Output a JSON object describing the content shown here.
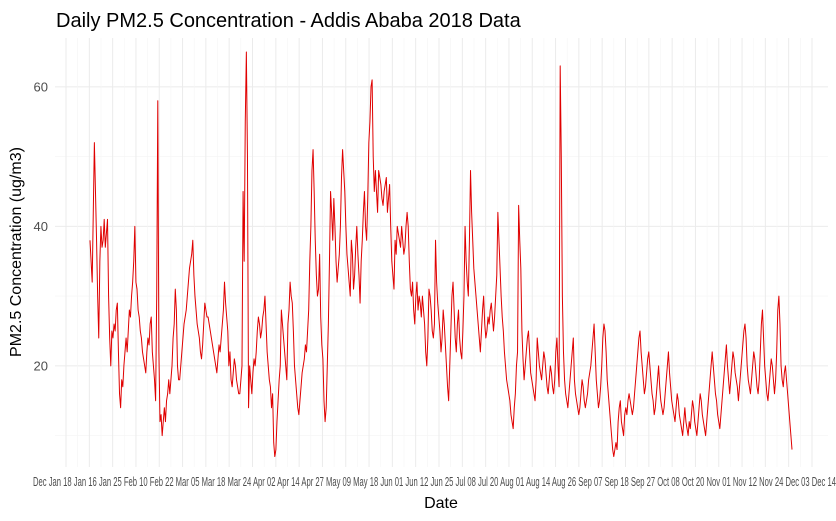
{
  "chart_data": {
    "type": "line",
    "title": "Daily PM2.5 Concentration - Addis Ababa 2018 Data",
    "xlabel": "Date",
    "ylabel": "PM2.5 Concentration (ug/m3)",
    "ylim": [
      5.5,
      67
    ],
    "yticks": [
      20,
      40,
      60
    ],
    "xlim": [
      0,
      380
    ],
    "x_tick_label_text": "Dec Jan 18 Jan 16 Jan 25 Feb 10 Feb 22 Mar 05 Mar 18 Mar 24 Apr 02 Apr 14 Apr 27 May 09 May 18 Jun 01 Jun 12 Jun 25 Jul 08 Jul 20 Aug 01 Aug 14 Aug 26 Sep 07 Sep 18 Sep 27 Oct 08 Oct 20 Nov 01 Nov 12 Nov 24 Dec 03 Dec 14",
    "grid": true,
    "legend": "none",
    "line_color": "#e00000",
    "series": [
      {
        "values": [
          38,
          35,
          32,
          42,
          52,
          45,
          38,
          30,
          24,
          35,
          40,
          37,
          38,
          41,
          37,
          39,
          41,
          30,
          24,
          20,
          25,
          24,
          26,
          25,
          28,
          29,
          22,
          16,
          14,
          18,
          17,
          20,
          22,
          24,
          22,
          25,
          28,
          27,
          30,
          32,
          35,
          40,
          32,
          31,
          28,
          27,
          25,
          24,
          22,
          21,
          20,
          19,
          22,
          24,
          23,
          26,
          27,
          22,
          20,
          18,
          15,
          30,
          58,
          22,
          12,
          13,
          10,
          12,
          14,
          12,
          15,
          16,
          18,
          16,
          18,
          20,
          24,
          26,
          31,
          28,
          20,
          18,
          18,
          20,
          22,
          24,
          26,
          27,
          28,
          30,
          32,
          34,
          35,
          36,
          38,
          33,
          30,
          28,
          26,
          25,
          24,
          22,
          21,
          23,
          26,
          29,
          28,
          27,
          27,
          26,
          25,
          24,
          23,
          22,
          21,
          20,
          19,
          21,
          23,
          22,
          24,
          26,
          28,
          32,
          29,
          27,
          25,
          20,
          22,
          18,
          17,
          19,
          21,
          20,
          18,
          17,
          16,
          16,
          18,
          20,
          45,
          35,
          55,
          65,
          50,
          14,
          20,
          18,
          16,
          19,
          21,
          20,
          22,
          25,
          27,
          26,
          24,
          25,
          27,
          28,
          30,
          26,
          22,
          20,
          18,
          17,
          14,
          16,
          9,
          7,
          8,
          12,
          15,
          18,
          20,
          28,
          26,
          24,
          22,
          20,
          18,
          26,
          28,
          32,
          30,
          29,
          25,
          20,
          18,
          16,
          14,
          13,
          15,
          17,
          19,
          20,
          21,
          23,
          22,
          25,
          28,
          35,
          40,
          48,
          51,
          45,
          38,
          33,
          30,
          31,
          36,
          27,
          23,
          21,
          15,
          12,
          14,
          20,
          26,
          35,
          45,
          42,
          38,
          44,
          40,
          35,
          32,
          34,
          36,
          40,
          47,
          51,
          48,
          45,
          40,
          36,
          34,
          32,
          30,
          38,
          36,
          31,
          33,
          37,
          40,
          36,
          33,
          29,
          35,
          38,
          42,
          45,
          40,
          38,
          44,
          52,
          55,
          60,
          61,
          50,
          45,
          48,
          45,
          42,
          48,
          47,
          46,
          44,
          43,
          45,
          46,
          47,
          42,
          44,
          46,
          40,
          35,
          33,
          31,
          38,
          36,
          40,
          39,
          38,
          37,
          40,
          38,
          36,
          37,
          40,
          42,
          40,
          35,
          31,
          30,
          32,
          28,
          26,
          30,
          32,
          28,
          30,
          29,
          27,
          30,
          28,
          26,
          22,
          20,
          24,
          31,
          30,
          28,
          25,
          24,
          26,
          38,
          32,
          29,
          27,
          25,
          22,
          24,
          28,
          26,
          23,
          20,
          17,
          15,
          20,
          25,
          30,
          32,
          28,
          24,
          22,
          26,
          28,
          24,
          22,
          21,
          25,
          30,
          40,
          35,
          32,
          30,
          38,
          48,
          42,
          38,
          34,
          32,
          30,
          28,
          26,
          24,
          22,
          25,
          28,
          30,
          26,
          24,
          25,
          27,
          26,
          28,
          29,
          27,
          25,
          27,
          30,
          33,
          42,
          38,
          34,
          30,
          27,
          25,
          22,
          20,
          18,
          17,
          16,
          15,
          13,
          12,
          11,
          14,
          16,
          20,
          22,
          43,
          38,
          34,
          25,
          21,
          18,
          20,
          22,
          24,
          25,
          22,
          19,
          18,
          17,
          16,
          15,
          18,
          24,
          22,
          20,
          19,
          18,
          20,
          22,
          21,
          19,
          17,
          16,
          18,
          20,
          19,
          17,
          16,
          18,
          22,
          24,
          20,
          17,
          63,
          50,
          30,
          22,
          18,
          16,
          15,
          14,
          16,
          18,
          20,
          22,
          24,
          18,
          16,
          15,
          14,
          13,
          14,
          16,
          18,
          17,
          15,
          14,
          15,
          16,
          18,
          19,
          20,
          22,
          24,
          26,
          22,
          18,
          16,
          14,
          15,
          17,
          20,
          24,
          26,
          25,
          22,
          18,
          16,
          14,
          12,
          10,
          8,
          7,
          8,
          9,
          8,
          12,
          14,
          15,
          12,
          11,
          10,
          13,
          14,
          13,
          15,
          16,
          15,
          14,
          13,
          14,
          16,
          18,
          20,
          22,
          24,
          25,
          22,
          20,
          18,
          16,
          17,
          19,
          21,
          22,
          20,
          18,
          16,
          15,
          13,
          14,
          16,
          18,
          20,
          17,
          15,
          14,
          13,
          14,
          16,
          18,
          20,
          22,
          19,
          17,
          15,
          14,
          13,
          12,
          14,
          16,
          15,
          13,
          12,
          11,
          10,
          12,
          14,
          12,
          11,
          10,
          12,
          11,
          13,
          15,
          14,
          12,
          11,
          10,
          12,
          14,
          16,
          15,
          13,
          12,
          11,
          10,
          12,
          14,
          16,
          18,
          20,
          22,
          20,
          18,
          16,
          15,
          13,
          12,
          11,
          13,
          15,
          17,
          19,
          21,
          23,
          20,
          18,
          16,
          18,
          20,
          22,
          21,
          19,
          18,
          17,
          15,
          17,
          19,
          21,
          23,
          25,
          26,
          24,
          20,
          18,
          17,
          16,
          18,
          20,
          22,
          21,
          19,
          17,
          16,
          18,
          22,
          26,
          28,
          24,
          20,
          18,
          16,
          15,
          17,
          19,
          21,
          20,
          18,
          16,
          18,
          22,
          28,
          30,
          26,
          20,
          18,
          17,
          19,
          20,
          18,
          16,
          14,
          12,
          10,
          8
        ]
      }
    ]
  }
}
